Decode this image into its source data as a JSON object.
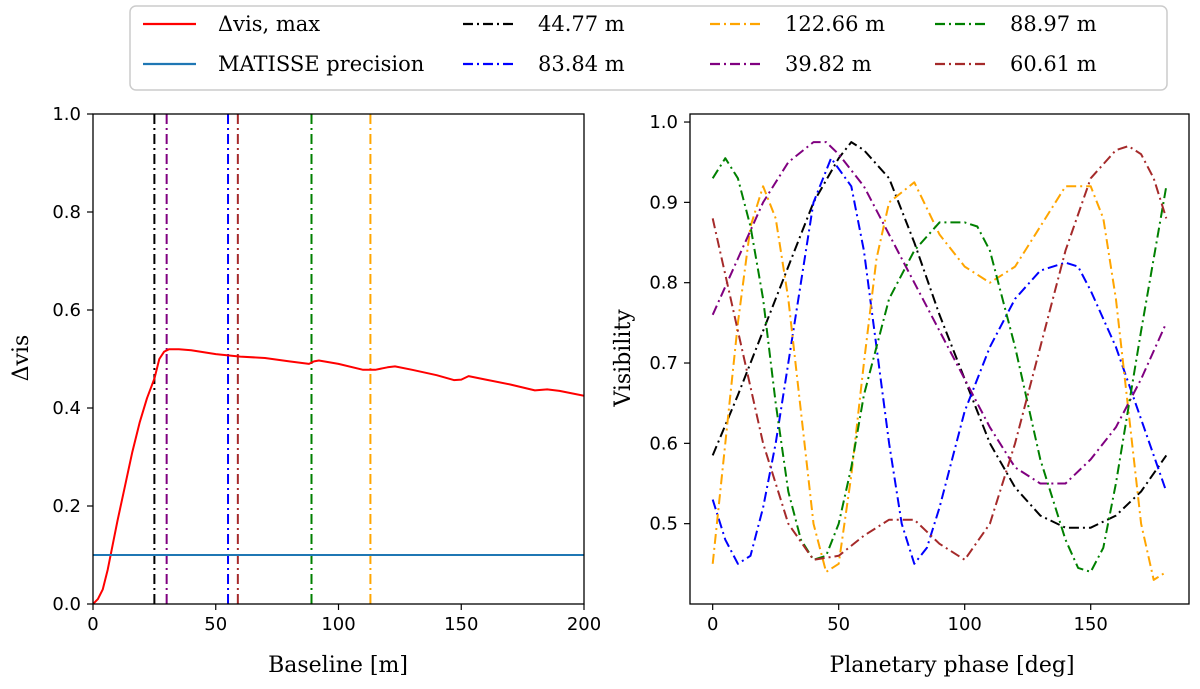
{
  "legend": {
    "position": "top-center",
    "entries": [
      {
        "label": "Δvis, max",
        "color": "#ff0000",
        "dash": "solid"
      },
      {
        "label": "MATISSE precision",
        "color": "#1f77b4",
        "dash": "solid"
      },
      {
        "label": "44.77 m",
        "color": "#000000",
        "dash": "dashdot"
      },
      {
        "label": "83.84 m",
        "color": "#0000ff",
        "dash": "dashdot"
      },
      {
        "label": "122.66 m",
        "color": "#ffa500",
        "dash": "dashdot"
      },
      {
        "label": "39.82 m",
        "color": "#800080",
        "dash": "dashdot"
      },
      {
        "label": "88.97 m",
        "color": "#008000",
        "dash": "dashdot"
      },
      {
        "label": "60.61 m",
        "color": "#a52a2a",
        "dash": "dashdot"
      }
    ]
  },
  "chart_data": [
    {
      "type": "line",
      "xlabel": "Baseline [m]",
      "ylabel": "Δvis",
      "xlim": [
        0,
        200
      ],
      "ylim": [
        0,
        1
      ],
      "xticks": [
        0,
        50,
        100,
        150,
        200
      ],
      "yticks": [
        0.0,
        0.2,
        0.4,
        0.6,
        0.8,
        1.0
      ],
      "xtick_labels": [
        "0",
        "50",
        "100",
        "150",
        "200"
      ],
      "ytick_labels": [
        "0.0",
        "0.2",
        "0.4",
        "0.6",
        "0.8",
        "1.0"
      ],
      "grid": false,
      "series": [
        {
          "name": "Δvis, max",
          "color": "#ff0000",
          "dash": "solid",
          "x": [
            0,
            2,
            4,
            6,
            8,
            10,
            13,
            16,
            19,
            22,
            25,
            27,
            29,
            31,
            35,
            40,
            50,
            60,
            70,
            80,
            88,
            90,
            92,
            100,
            110,
            115,
            120,
            123,
            130,
            140,
            147,
            150,
            153,
            160,
            170,
            180,
            185,
            190,
            200
          ],
          "y": [
            0.0,
            0.01,
            0.03,
            0.07,
            0.12,
            0.17,
            0.24,
            0.31,
            0.37,
            0.42,
            0.46,
            0.5,
            0.515,
            0.52,
            0.52,
            0.518,
            0.51,
            0.505,
            0.502,
            0.495,
            0.49,
            0.495,
            0.497,
            0.49,
            0.478,
            0.478,
            0.483,
            0.485,
            0.478,
            0.467,
            0.457,
            0.458,
            0.465,
            0.458,
            0.448,
            0.436,
            0.438,
            0.435,
            0.425
          ]
        },
        {
          "name": "MATISSE precision",
          "color": "#1f77b4",
          "dash": "solid",
          "x": [
            0,
            200
          ],
          "y": [
            0.1,
            0.1
          ]
        }
      ],
      "vlines": [
        {
          "x": 25,
          "color": "#000000",
          "dash": "dashdot"
        },
        {
          "x": 30,
          "color": "#800080",
          "dash": "dashdot"
        },
        {
          "x": 55,
          "color": "#0000ff",
          "dash": "dashdot"
        },
        {
          "x": 59,
          "color": "#a52a2a",
          "dash": "dashdot"
        },
        {
          "x": 89,
          "color": "#008000",
          "dash": "dashdot"
        },
        {
          "x": 113,
          "color": "#ffa500",
          "dash": "dashdot"
        }
      ]
    },
    {
      "type": "line",
      "xlabel": "Planetary phase [deg]",
      "ylabel": "Visibility",
      "xlim": [
        -9,
        189
      ],
      "ylim": [
        0.4,
        1.01
      ],
      "xticks": [
        0,
        50,
        100,
        150
      ],
      "yticks": [
        0.5,
        0.6,
        0.7,
        0.8,
        0.9,
        1.0
      ],
      "xtick_labels": [
        "0",
        "50",
        "100",
        "150"
      ],
      "ytick_labels": [
        "0.5",
        "0.6",
        "0.7",
        "0.8",
        "0.9",
        "1.0"
      ],
      "grid": false,
      "series": [
        {
          "name": "44.77 m",
          "color": "#000000",
          "dash": "dashdot",
          "x": [
            0,
            10,
            20,
            30,
            40,
            50,
            55,
            60,
            70,
            80,
            90,
            100,
            110,
            120,
            130,
            140,
            150,
            160,
            170,
            180
          ],
          "y": [
            0.585,
            0.66,
            0.74,
            0.82,
            0.9,
            0.955,
            0.975,
            0.965,
            0.93,
            0.85,
            0.76,
            0.68,
            0.6,
            0.545,
            0.51,
            0.495,
            0.495,
            0.51,
            0.54,
            0.585
          ]
        },
        {
          "name": "83.84 m",
          "color": "#0000ff",
          "dash": "dashdot",
          "x": [
            0,
            5,
            10,
            15,
            20,
            25,
            30,
            35,
            40,
            47,
            55,
            60,
            65,
            70,
            75,
            80,
            85,
            90,
            95,
            100,
            110,
            120,
            130,
            140,
            145,
            150,
            160,
            170,
            180
          ],
          "y": [
            0.53,
            0.48,
            0.45,
            0.46,
            0.52,
            0.6,
            0.7,
            0.8,
            0.9,
            0.955,
            0.92,
            0.84,
            0.72,
            0.6,
            0.5,
            0.45,
            0.47,
            0.52,
            0.58,
            0.64,
            0.72,
            0.78,
            0.815,
            0.825,
            0.82,
            0.79,
            0.72,
            0.63,
            0.54
          ]
        },
        {
          "name": "122.66 m",
          "color": "#ffa500",
          "dash": "dashdot",
          "x": [
            0,
            5,
            10,
            15,
            20,
            25,
            30,
            35,
            40,
            45,
            50,
            55,
            60,
            65,
            70,
            80,
            90,
            100,
            110,
            120,
            130,
            140,
            150,
            155,
            160,
            165,
            170,
            175,
            180
          ],
          "y": [
            0.45,
            0.6,
            0.75,
            0.87,
            0.92,
            0.88,
            0.78,
            0.64,
            0.5,
            0.44,
            0.45,
            0.56,
            0.7,
            0.83,
            0.9,
            0.925,
            0.86,
            0.82,
            0.8,
            0.82,
            0.87,
            0.92,
            0.92,
            0.88,
            0.78,
            0.64,
            0.5,
            0.43,
            0.44
          ]
        },
        {
          "name": "39.82 m",
          "color": "#800080",
          "dash": "dashdot",
          "x": [
            0,
            10,
            20,
            30,
            40,
            45,
            50,
            60,
            70,
            80,
            90,
            100,
            110,
            120,
            130,
            140,
            150,
            160,
            170,
            180
          ],
          "y": [
            0.76,
            0.83,
            0.9,
            0.95,
            0.975,
            0.975,
            0.96,
            0.92,
            0.86,
            0.8,
            0.74,
            0.68,
            0.62,
            0.57,
            0.55,
            0.55,
            0.58,
            0.62,
            0.68,
            0.75
          ]
        },
        {
          "name": "88.97 m",
          "color": "#008000",
          "dash": "dashdot",
          "x": [
            0,
            5,
            10,
            15,
            20,
            25,
            30,
            35,
            40,
            45,
            50,
            55,
            60,
            70,
            80,
            90,
            100,
            105,
            110,
            120,
            130,
            140,
            145,
            150,
            155,
            160,
            170,
            180
          ],
          "y": [
            0.93,
            0.955,
            0.93,
            0.87,
            0.78,
            0.65,
            0.54,
            0.48,
            0.455,
            0.46,
            0.5,
            0.57,
            0.66,
            0.78,
            0.84,
            0.875,
            0.875,
            0.87,
            0.84,
            0.72,
            0.58,
            0.48,
            0.445,
            0.44,
            0.47,
            0.55,
            0.74,
            0.92
          ]
        },
        {
          "name": "60.61 m",
          "color": "#a52a2a",
          "dash": "dashdot",
          "x": [
            0,
            10,
            20,
            30,
            40,
            50,
            60,
            70,
            80,
            90,
            100,
            110,
            120,
            130,
            140,
            150,
            160,
            165,
            170,
            175,
            180
          ],
          "y": [
            0.88,
            0.74,
            0.6,
            0.5,
            0.455,
            0.46,
            0.485,
            0.505,
            0.505,
            0.475,
            0.455,
            0.5,
            0.6,
            0.72,
            0.84,
            0.93,
            0.965,
            0.97,
            0.96,
            0.93,
            0.88
          ]
        }
      ]
    }
  ]
}
